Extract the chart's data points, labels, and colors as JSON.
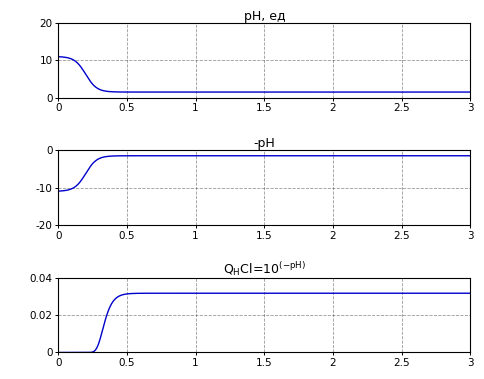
{
  "title1": "pH, ед",
  "title2": "-pH",
  "title3_part1": "Q",
  "title3_part2": "H",
  "title3_part3": "Cl=10",
  "title3_part4": "(-pH)",
  "x_start": 0.0,
  "x_end": 3.0,
  "xlim": [
    0,
    3
  ],
  "ylim1": [
    0,
    20
  ],
  "ylim2": [
    -20,
    0
  ],
  "ylim3": [
    0,
    0.04
  ],
  "yticks1": [
    0,
    10,
    20
  ],
  "yticks2": [
    -20,
    -10,
    0
  ],
  "yticks3": [
    0,
    0.02,
    0.04
  ],
  "xticks": [
    0,
    0.5,
    1,
    1.5,
    2,
    2.5,
    3
  ],
  "line_color": "#0000cc",
  "grid_color": "#000000",
  "grid_linestyle": "--",
  "grid_alpha": 0.4,
  "bg_color": "#ffffff",
  "ph_initial": 11.0,
  "ph_final": 1.0,
  "inflection_x": 0.2,
  "curve_rate": 25
}
